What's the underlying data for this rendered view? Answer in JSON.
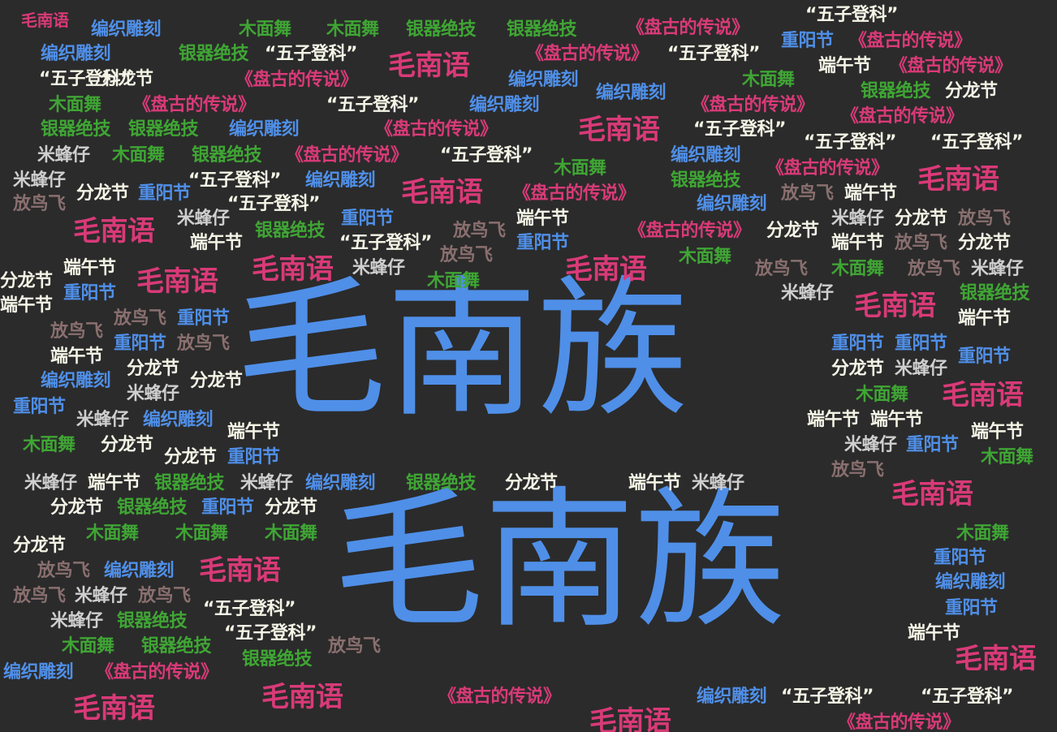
{
  "words": {
    "maonan_zu": "毛南族",
    "maonan_yu": "毛南语",
    "wuzi_dengke": "“五子登科”",
    "pangu": "《盘古的传说》",
    "bianzhi": "编织雕刻",
    "mumian": "木面舞",
    "yinqi": "银器绝技",
    "chongyang": "重阳节",
    "duanwu": "端午节",
    "fenlong": "分龙节",
    "fangniao": "放鸟飞",
    "mifeng": "米蜂仔"
  },
  "colors": {
    "background": "#2b2b2b",
    "blue": "#4f8fe8",
    "pink": "#d93a78",
    "green": "#3fa534",
    "white": "#f4f4e6",
    "grey": "#cfcfcf",
    "taupe": "#8a6f6f"
  }
}
